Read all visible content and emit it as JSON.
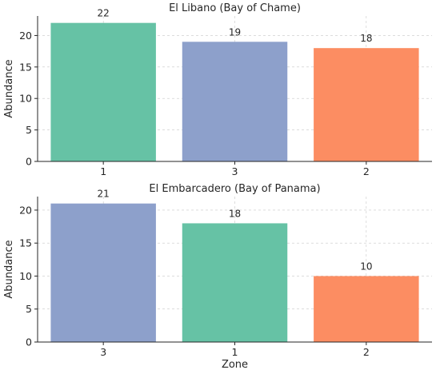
{
  "chart_data": [
    {
      "type": "bar",
      "title": "El Libano (Bay of Chame)",
      "xlabel": "",
      "ylabel": "Abundance",
      "categories": [
        "1",
        "3",
        "2"
      ],
      "values": [
        22,
        19,
        18
      ],
      "bar_colors": [
        "#66c2a5",
        "#8da0cb",
        "#fc8d62"
      ],
      "ylim": [
        0,
        23.1
      ],
      "yticks": [
        0,
        5,
        10,
        15,
        20
      ],
      "grid": true
    },
    {
      "type": "bar",
      "title": "El Embarcadero (Bay of Panama)",
      "xlabel": "Zone",
      "ylabel": "Abundance",
      "categories": [
        "3",
        "1",
        "2"
      ],
      "values": [
        21,
        18,
        10
      ],
      "bar_colors": [
        "#8da0cb",
        "#66c2a5",
        "#fc8d62"
      ],
      "ylim": [
        0,
        22.05
      ],
      "yticks": [
        0,
        5,
        10,
        15,
        20
      ],
      "grid": true
    }
  ]
}
